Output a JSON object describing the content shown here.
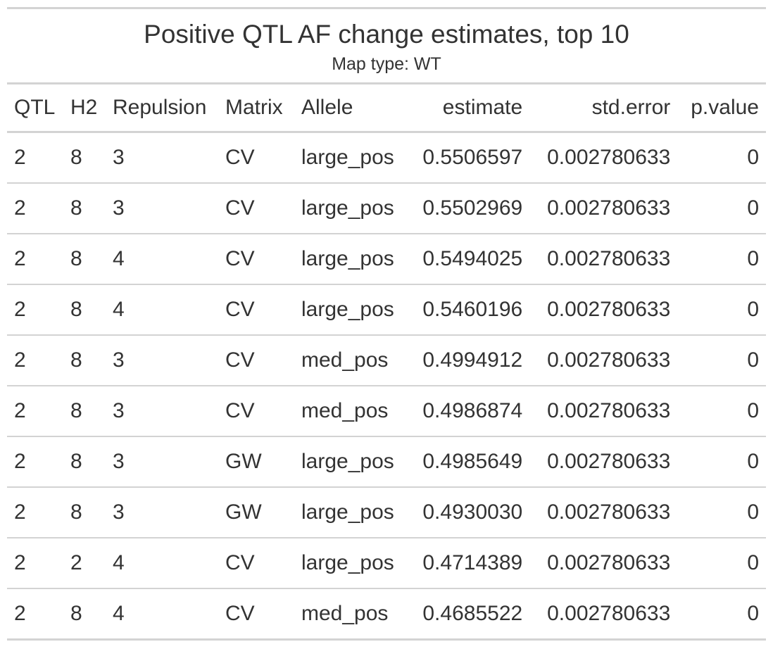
{
  "table": {
    "title": "Positive QTL AF change estimates, top 10",
    "subtitle": "Map type: WT",
    "columns": [
      "QTL",
      "H2",
      "Repulsion",
      "Matrix",
      "Allele",
      "estimate",
      "std.error",
      "p.value"
    ],
    "rows": [
      [
        "2",
        "8",
        "3",
        "CV",
        "large_pos",
        "0.5506597",
        "0.002780633",
        "0"
      ],
      [
        "2",
        "8",
        "3",
        "CV",
        "large_pos",
        "0.5502969",
        "0.002780633",
        "0"
      ],
      [
        "2",
        "8",
        "4",
        "CV",
        "large_pos",
        "0.5494025",
        "0.002780633",
        "0"
      ],
      [
        "2",
        "8",
        "4",
        "CV",
        "large_pos",
        "0.5460196",
        "0.002780633",
        "0"
      ],
      [
        "2",
        "8",
        "3",
        "CV",
        "med_pos",
        "0.4994912",
        "0.002780633",
        "0"
      ],
      [
        "2",
        "8",
        "3",
        "CV",
        "med_pos",
        "0.4986874",
        "0.002780633",
        "0"
      ],
      [
        "2",
        "8",
        "3",
        "GW",
        "large_pos",
        "0.4985649",
        "0.002780633",
        "0"
      ],
      [
        "2",
        "8",
        "3",
        "GW",
        "large_pos",
        "0.4930030",
        "0.002780633",
        "0"
      ],
      [
        "2",
        "2",
        "4",
        "CV",
        "large_pos",
        "0.4714389",
        "0.002780633",
        "0"
      ],
      [
        "2",
        "8",
        "4",
        "CV",
        "med_pos",
        "0.4685522",
        "0.002780633",
        "0"
      ]
    ]
  }
}
